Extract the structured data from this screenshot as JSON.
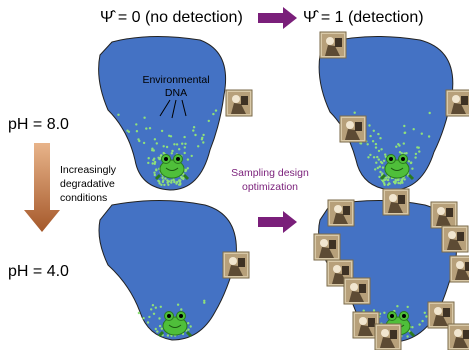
{
  "header": {
    "left": "Ψ̂ = 0 (no detection)",
    "right": "Ψ̂ = 1 (detection)"
  },
  "rows": [
    {
      "label": "pH = 8.0"
    },
    {
      "label": "pH = 4.0"
    }
  ],
  "annotations": {
    "edna": [
      "Environmental",
      "DNA"
    ],
    "degradation": [
      "Increasingly",
      "degradative",
      "conditions"
    ],
    "sampling": [
      "Sampling design",
      "optimization"
    ]
  }
}
